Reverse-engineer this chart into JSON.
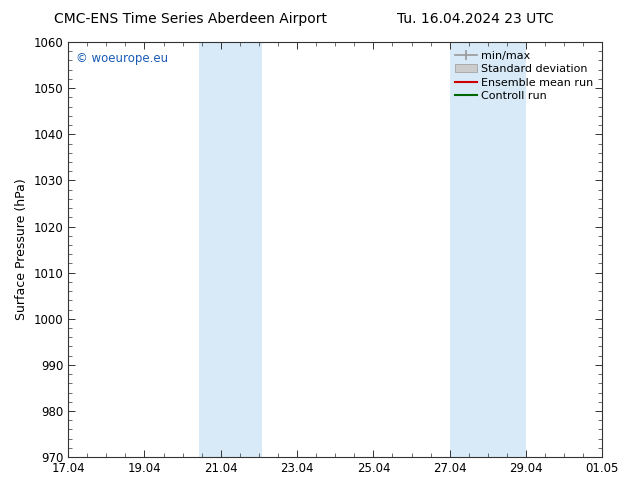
{
  "title_left": "CMC-ENS Time Series Aberdeen Airport",
  "title_right": "Tu. 16.04.2024 23 UTC",
  "ylabel": "Surface Pressure (hPa)",
  "ylim": [
    970,
    1060
  ],
  "ytick_step": 10,
  "xtick_positions": [
    17,
    19,
    21,
    23,
    25,
    27,
    29,
    31
  ],
  "xtick_labels": [
    "17.04",
    "19.04",
    "21.04",
    "23.04",
    "25.04",
    "27.04",
    "29.04",
    "01.05"
  ],
  "xlim": [
    17,
    31
  ],
  "watermark": "© woeurope.eu",
  "watermark_color": "#1a5cb5",
  "shaded_regions": [
    {
      "x_start": 20.42,
      "x_end": 22.08
    },
    {
      "x_start": 27.0,
      "x_end": 29.0
    }
  ],
  "shaded_color": "#d8eaf7",
  "background_color": "#ffffff",
  "legend_items": [
    {
      "label": "min/max",
      "color": "#aaaaaa",
      "style": "minmax"
    },
    {
      "label": "Standard deviation",
      "color": "#cccccc",
      "style": "stddev"
    },
    {
      "label": "Ensemble mean run",
      "color": "#cc0000",
      "style": "line"
    },
    {
      "label": "Controll run",
      "color": "#006600",
      "style": "line"
    }
  ],
  "title_fontsize": 10,
  "axis_fontsize": 9,
  "tick_fontsize": 8.5,
  "watermark_fontsize": 8.5,
  "legend_fontsize": 8
}
